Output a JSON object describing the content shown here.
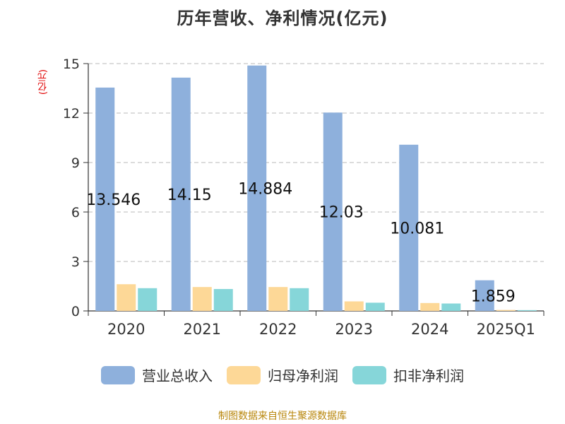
{
  "chart_data": {
    "type": "bar",
    "title": "历年营收、净利情况(亿元)",
    "ylabel": "(亿元)",
    "ylim": [
      0,
      15
    ],
    "yticks": [
      0,
      3,
      6,
      9,
      12,
      15
    ],
    "grid": true,
    "legend_position": "bottom",
    "categories": [
      "2020",
      "2021",
      "2022",
      "2023",
      "2024",
      "2025Q1"
    ],
    "series": [
      {
        "name": "营业总收入",
        "color": "#8eb0dc",
        "values": [
          13.546,
          14.15,
          14.884,
          12.03,
          10.081,
          1.859
        ],
        "labels": [
          "13.546",
          "14.15",
          "14.884",
          "12.03",
          "10.081",
          "1.859"
        ]
      },
      {
        "name": "归母净利润",
        "color": "#fdd897",
        "values": [
          1.62,
          1.45,
          1.45,
          0.58,
          0.48,
          0.06
        ]
      },
      {
        "name": "扣非净利润",
        "color": "#86d6d9",
        "values": [
          1.38,
          1.33,
          1.38,
          0.5,
          0.45,
          0.05
        ]
      }
    ]
  },
  "source": "制图数据来自恒生聚源数据库"
}
